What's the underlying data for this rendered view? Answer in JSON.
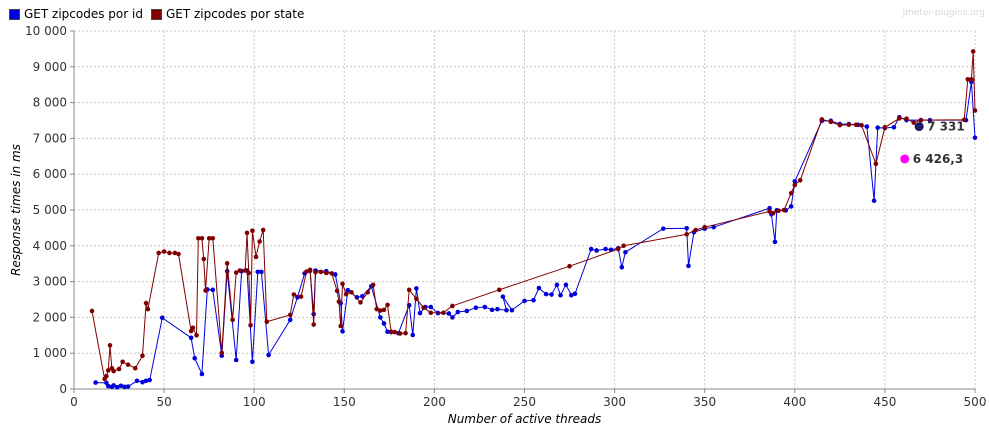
{
  "watermark": "jmeter-plugins.org",
  "chart_data": {
    "type": "line",
    "xlabel": "Number of active threads",
    "ylabel": "Response times in ms",
    "xlim": [
      0,
      500
    ],
    "ylim": [
      0,
      10000
    ],
    "xticks": [
      0,
      50,
      100,
      150,
      200,
      250,
      300,
      350,
      400,
      450,
      500
    ],
    "yticks": [
      0,
      1000,
      2000,
      3000,
      4000,
      5000,
      6000,
      7000,
      8000,
      9000,
      10000
    ],
    "ytick_labels": [
      "0",
      "1 000",
      "2 000",
      "3 000",
      "4 000",
      "5 000",
      "6 000",
      "7 000",
      "8 000",
      "9 000",
      "10 000"
    ],
    "grid": true,
    "legend_position": "top-left",
    "series": [
      {
        "name": "GET zipcodes por id",
        "color": "#0000dd",
        "points": [
          [
            12,
            180
          ],
          [
            18,
            170
          ],
          [
            19,
            80
          ],
          [
            21,
            60
          ],
          [
            22,
            100
          ],
          [
            24,
            50
          ],
          [
            26,
            90
          ],
          [
            28,
            60
          ],
          [
            30,
            70
          ],
          [
            35,
            230
          ],
          [
            38,
            190
          ],
          [
            40,
            230
          ],
          [
            42,
            250
          ],
          [
            49,
            1990
          ],
          [
            65,
            1430
          ],
          [
            67,
            860
          ],
          [
            71,
            420
          ],
          [
            74,
            2780
          ],
          [
            77,
            2770
          ],
          [
            82,
            930
          ],
          [
            85,
            3290
          ],
          [
            90,
            810
          ],
          [
            93,
            3290
          ],
          [
            96,
            3310
          ],
          [
            99,
            760
          ],
          [
            102,
            3270
          ],
          [
            104,
            3270
          ],
          [
            108,
            950
          ],
          [
            120,
            1930
          ],
          [
            124,
            2560
          ],
          [
            128,
            3230
          ],
          [
            131,
            3300
          ],
          [
            133,
            2090
          ],
          [
            134,
            3310
          ],
          [
            140,
            3290
          ],
          [
            145,
            3200
          ],
          [
            148,
            2400
          ],
          [
            149,
            1610
          ],
          [
            152,
            2760
          ],
          [
            157,
            2560
          ],
          [
            160,
            2590
          ],
          [
            165,
            2870
          ],
          [
            170,
            2000
          ],
          [
            172,
            1830
          ],
          [
            174,
            1600
          ],
          [
            176,
            1590
          ],
          [
            180,
            1560
          ],
          [
            186,
            2340
          ],
          [
            188,
            1510
          ],
          [
            190,
            2810
          ],
          [
            192,
            2120
          ],
          [
            195,
            2290
          ],
          [
            198,
            2290
          ],
          [
            202,
            2120
          ],
          [
            208,
            2110
          ],
          [
            210,
            2000
          ],
          [
            213,
            2150
          ],
          [
            218,
            2180
          ],
          [
            223,
            2270
          ],
          [
            228,
            2290
          ],
          [
            232,
            2210
          ],
          [
            235,
            2230
          ],
          [
            240,
            2200
          ],
          [
            238,
            2580
          ],
          [
            243,
            2200
          ],
          [
            250,
            2460
          ],
          [
            255,
            2480
          ],
          [
            258,
            2820
          ],
          [
            262,
            2650
          ],
          [
            265,
            2640
          ],
          [
            268,
            2910
          ],
          [
            270,
            2620
          ],
          [
            273,
            2910
          ],
          [
            276,
            2620
          ],
          [
            278,
            2660
          ],
          [
            287,
            3910
          ],
          [
            290,
            3870
          ],
          [
            295,
            3910
          ],
          [
            298,
            3890
          ],
          [
            302,
            3930
          ],
          [
            304,
            3400
          ],
          [
            306,
            3820
          ],
          [
            327,
            4480
          ],
          [
            340,
            4490
          ],
          [
            341,
            3440
          ],
          [
            344,
            4380
          ],
          [
            350,
            4480
          ],
          [
            355,
            4520
          ],
          [
            386,
            5050
          ],
          [
            387,
            4880
          ],
          [
            389,
            4110
          ],
          [
            390,
            4990
          ],
          [
            395,
            4990
          ],
          [
            398,
            5100
          ],
          [
            400,
            5800
          ],
          [
            415,
            7490
          ],
          [
            420,
            7490
          ],
          [
            425,
            7400
          ],
          [
            430,
            7400
          ],
          [
            435,
            7380
          ],
          [
            440,
            7330
          ],
          [
            444,
            5260
          ],
          [
            446,
            7300
          ],
          [
            450,
            7290
          ],
          [
            455,
            7310
          ],
          [
            458,
            7590
          ],
          [
            462,
            7510
          ],
          [
            470,
            7510
          ],
          [
            475,
            7510
          ],
          [
            495,
            7510
          ],
          [
            498,
            8580
          ],
          [
            500,
            7020
          ]
        ]
      },
      {
        "name": "GET zipcodes por state",
        "color": "#800000",
        "points": [
          [
            10,
            2180
          ],
          [
            17,
            280
          ],
          [
            18,
            360
          ],
          [
            19,
            520
          ],
          [
            20,
            1220
          ],
          [
            21,
            580
          ],
          [
            22,
            500
          ],
          [
            25,
            560
          ],
          [
            27,
            760
          ],
          [
            30,
            680
          ],
          [
            34,
            580
          ],
          [
            38,
            930
          ],
          [
            40,
            2400
          ],
          [
            41,
            2230
          ],
          [
            47,
            3800
          ],
          [
            50,
            3840
          ],
          [
            53,
            3800
          ],
          [
            56,
            3800
          ],
          [
            58,
            3770
          ],
          [
            65,
            1620
          ],
          [
            66,
            1710
          ],
          [
            68,
            1500
          ],
          [
            69,
            4210
          ],
          [
            71,
            4210
          ],
          [
            72,
            3630
          ],
          [
            73,
            2750
          ],
          [
            75,
            4210
          ],
          [
            77,
            4210
          ],
          [
            82,
            1010
          ],
          [
            85,
            3510
          ],
          [
            88,
            1930
          ],
          [
            90,
            3250
          ],
          [
            92,
            3310
          ],
          [
            95,
            3310
          ],
          [
            96,
            4360
          ],
          [
            97,
            3240
          ],
          [
            98,
            1780
          ],
          [
            99,
            4420
          ],
          [
            101,
            3690
          ],
          [
            103,
            4120
          ],
          [
            105,
            4440
          ],
          [
            107,
            1880
          ],
          [
            120,
            2070
          ],
          [
            122,
            2640
          ],
          [
            126,
            2580
          ],
          [
            129,
            3280
          ],
          [
            131,
            3330
          ],
          [
            133,
            1800
          ],
          [
            134,
            3260
          ],
          [
            137,
            3270
          ],
          [
            140,
            3240
          ],
          [
            143,
            3230
          ],
          [
            146,
            2740
          ],
          [
            147,
            2440
          ],
          [
            148,
            1760
          ],
          [
            149,
            2940
          ],
          [
            151,
            2650
          ],
          [
            154,
            2700
          ],
          [
            159,
            2420
          ],
          [
            163,
            2700
          ],
          [
            166,
            2910
          ],
          [
            168,
            2230
          ],
          [
            170,
            2190
          ],
          [
            172,
            2210
          ],
          [
            174,
            2350
          ],
          [
            176,
            1600
          ],
          [
            178,
            1590
          ],
          [
            181,
            1550
          ],
          [
            184,
            1560
          ],
          [
            186,
            2770
          ],
          [
            190,
            2520
          ],
          [
            194,
            2270
          ],
          [
            198,
            2130
          ],
          [
            205,
            2130
          ],
          [
            210,
            2320
          ],
          [
            236,
            2770
          ],
          [
            275,
            3430
          ],
          [
            302,
            3910
          ],
          [
            305,
            4000
          ],
          [
            340,
            4320
          ],
          [
            345,
            4440
          ],
          [
            350,
            4520
          ],
          [
            386,
            4960
          ],
          [
            388,
            4910
          ],
          [
            391,
            4980
          ],
          [
            394,
            5000
          ],
          [
            398,
            5470
          ],
          [
            400,
            5700
          ],
          [
            403,
            5830
          ],
          [
            415,
            7530
          ],
          [
            420,
            7460
          ],
          [
            425,
            7370
          ],
          [
            430,
            7380
          ],
          [
            434,
            7380
          ],
          [
            437,
            7370
          ],
          [
            445,
            6290
          ],
          [
            450,
            7310
          ],
          [
            458,
            7560
          ],
          [
            462,
            7550
          ],
          [
            466,
            7440
          ],
          [
            470,
            7510
          ],
          [
            494,
            7520
          ],
          [
            496,
            8650
          ],
          [
            498,
            8650
          ],
          [
            499,
            9430
          ],
          [
            500,
            7780
          ]
        ]
      }
    ],
    "annotations": [
      {
        "label": "7 331",
        "x": 469,
        "y": 7331,
        "color": "#1a1a66"
      },
      {
        "label": "6 426,3",
        "x": 461,
        "y": 6426.3,
        "color": "#ff00ff"
      }
    ]
  }
}
